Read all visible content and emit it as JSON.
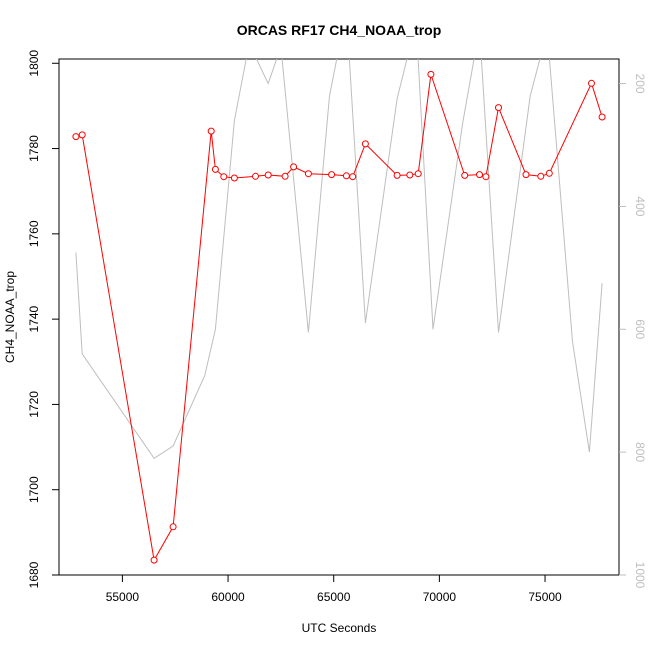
{
  "chart_data": {
    "type": "line",
    "title": "ORCAS RF17 CH4_NOAA_trop",
    "xlabel": "UTC Seconds",
    "ylabel": "CH4_NOAA_trop",
    "xlim": [
      52000,
      78500
    ],
    "ylim": [
      1680,
      1801
    ],
    "y2lim": [
      1000,
      160
    ],
    "y2_reversed": true,
    "xticks": [
      55000,
      60000,
      65000,
      70000,
      75000
    ],
    "yticks": [
      1680,
      1700,
      1720,
      1740,
      1760,
      1780,
      1800
    ],
    "y2ticks": [
      200,
      400,
      600,
      800,
      1000
    ],
    "grid": false,
    "series": [
      {
        "color": "#ff0000",
        "marker": "open-circle",
        "axis": "left",
        "x": [
          52800,
          53100,
          56500,
          57400,
          59200,
          59400,
          59800,
          60300,
          61300,
          61900,
          62700,
          63100,
          63800,
          64900,
          65600,
          65900,
          66500,
          68000,
          68600,
          69000,
          69600,
          71200,
          71900,
          72200,
          72800,
          74100,
          74800,
          75200,
          77200,
          77700
        ],
        "y": [
          1782.8,
          1783.2,
          1683.5,
          1691.3,
          1784.1,
          1775.1,
          1773.4,
          1773.1,
          1773.5,
          1773.8,
          1773.5,
          1775.7,
          1774.1,
          1773.9,
          1773.6,
          1773.4,
          1781.1,
          1773.7,
          1773.8,
          1774.1,
          1797.4,
          1773.7,
          1773.9,
          1773.4,
          1789.6,
          1773.9,
          1773.5,
          1774.2,
          1795.3,
          1787.4
        ]
      },
      {
        "color": "#bebebe",
        "marker": "none",
        "axis": "right",
        "x": [
          52800,
          53100,
          56500,
          57400,
          58900,
          59400,
          60300,
          61000,
          61900,
          62500,
          63800,
          64800,
          65600,
          66500,
          68000,
          68900,
          69700,
          71100,
          71900,
          72800,
          74300,
          75100,
          76300,
          77100,
          77700
        ],
        "y": [
          475,
          640,
          810,
          790,
          675,
          600,
          260,
          135,
          200,
          140,
          605,
          220,
          80,
          590,
          225,
          100,
          600,
          265,
          110,
          605,
          220,
          115,
          620,
          800,
          525
        ]
      }
    ]
  }
}
